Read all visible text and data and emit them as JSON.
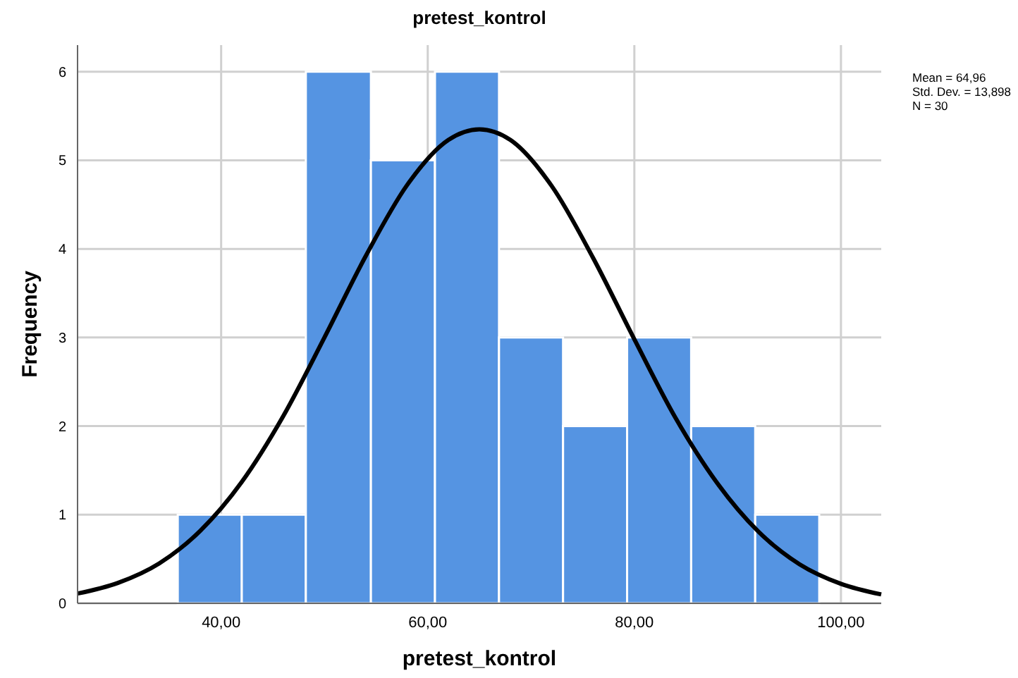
{
  "chart_data": {
    "type": "histogram",
    "title": "pretest_kontrol",
    "xlabel": "pretest_kontrol",
    "ylabel": "Frequency",
    "annotations": [
      "Mean = 64,96",
      "Std. Dev. = 13,898",
      "N = 30"
    ],
    "bins": [
      35.8,
      42.0,
      48.2,
      54.5,
      60.7,
      66.9,
      73.1,
      79.3,
      85.5,
      91.7,
      97.9
    ],
    "values": [
      1,
      1,
      6,
      5,
      6,
      3,
      2,
      3,
      2,
      1
    ],
    "color": "#5594e2",
    "series": [
      {
        "type": "line",
        "color": "#000000",
        "x": [
          26.1,
          30,
          34,
          38,
          42,
          46,
          50,
          54,
          58,
          62,
          65,
          68,
          72,
          76,
          80,
          84,
          88,
          92,
          96,
          100,
          103.9
        ],
        "values": [
          0.11,
          0.23,
          0.45,
          0.82,
          1.37,
          2.11,
          3.0,
          3.92,
          4.72,
          5.23,
          5.35,
          5.23,
          4.71,
          3.9,
          2.98,
          2.09,
          1.36,
          0.81,
          0.44,
          0.22,
          0.1
        ]
      }
    ],
    "xlim": [
      26.1,
      103.9
    ],
    "ylim": [
      0,
      6.3
    ],
    "xticks": [
      {
        "value": 40,
        "label": "40,00"
      },
      {
        "value": 60,
        "label": "60,00"
      },
      {
        "value": 80,
        "label": "80,00"
      },
      {
        "value": 100,
        "label": "100,00"
      }
    ],
    "yticks": [
      0,
      1,
      2,
      3,
      4,
      5,
      6
    ],
    "grid": true,
    "line_style": "solid"
  }
}
